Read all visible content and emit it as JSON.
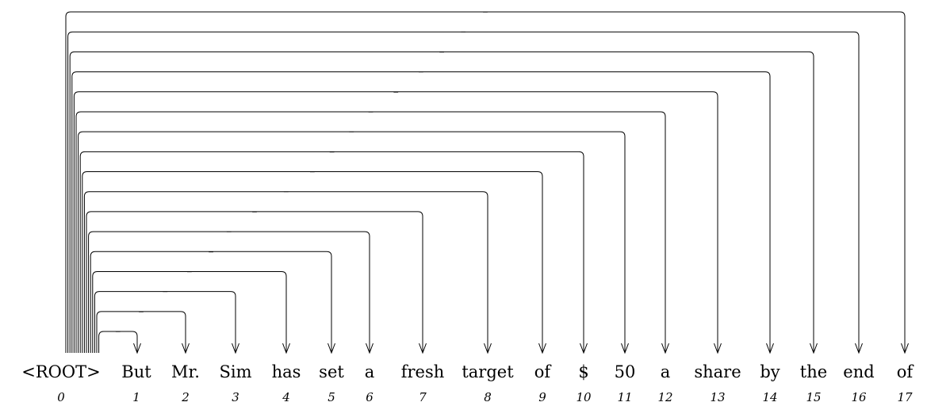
{
  "tokens": [
    {
      "word": "<ROOT>",
      "index": "0"
    },
    {
      "word": "But",
      "index": "1"
    },
    {
      "word": "Mr.",
      "index": "2"
    },
    {
      "word": "Sim",
      "index": "3"
    },
    {
      "word": "has",
      "index": "4"
    },
    {
      "word": "set",
      "index": "5"
    },
    {
      "word": "a",
      "index": "6"
    },
    {
      "word": "fresh",
      "index": "7"
    },
    {
      "word": "target",
      "index": "8"
    },
    {
      "word": "of",
      "index": "9"
    },
    {
      "word": "$",
      "index": "10"
    },
    {
      "word": "50",
      "index": "11"
    },
    {
      "word": "a",
      "index": "12"
    },
    {
      "word": "share",
      "index": "13"
    },
    {
      "word": "by",
      "index": "14"
    },
    {
      "word": "the",
      "index": "15"
    },
    {
      "word": "end",
      "index": "16"
    },
    {
      "word": "of",
      "index": "17"
    }
  ],
  "arcs": [
    {
      "from": 0,
      "to": 1,
      "label": "_"
    },
    {
      "from": 0,
      "to": 2,
      "label": "_"
    },
    {
      "from": 0,
      "to": 3,
      "label": "_"
    },
    {
      "from": 0,
      "to": 4,
      "label": "_"
    },
    {
      "from": 0,
      "to": 5,
      "label": "_"
    },
    {
      "from": 0,
      "to": 6,
      "label": "_"
    },
    {
      "from": 0,
      "to": 7,
      "label": "_"
    },
    {
      "from": 0,
      "to": 8,
      "label": "_"
    },
    {
      "from": 0,
      "to": 9,
      "label": "_"
    },
    {
      "from": 0,
      "to": 10,
      "label": "_"
    },
    {
      "from": 0,
      "to": 11,
      "label": "_"
    },
    {
      "from": 0,
      "to": 12,
      "label": "_"
    },
    {
      "from": 0,
      "to": 13,
      "label": "_"
    },
    {
      "from": 0,
      "to": 14,
      "label": "_"
    },
    {
      "from": 0,
      "to": 15,
      "label": "_"
    },
    {
      "from": 0,
      "to": 16,
      "label": "_"
    },
    {
      "from": 0,
      "to": 17,
      "label": "_"
    }
  ]
}
